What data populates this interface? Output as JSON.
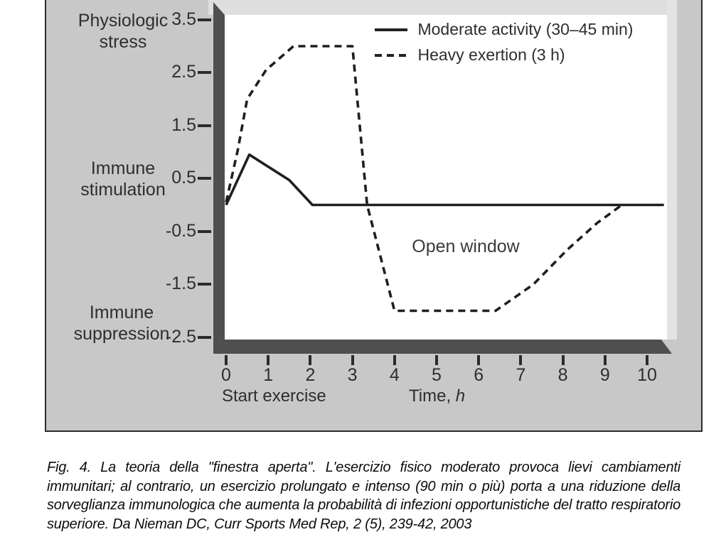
{
  "figure": {
    "y_band_labels": {
      "top": "Physiologic\nstress",
      "middle": "Immune\nstimulation",
      "bottom": "Immune\nsuppression"
    },
    "legend": [
      {
        "label": "Moderate activity (30–45 min)",
        "line_style": "solid"
      },
      {
        "label": "Heavy exertion (3 h)",
        "line_style": "dashed"
      }
    ],
    "open_window_annotation": "Open window",
    "x_axis_note": "Start exercise",
    "x_axis_title_prefix": "Time, ",
    "x_axis_title_unit": "h"
  },
  "chart_data": {
    "type": "line",
    "title": "",
    "xlabel": "Time, h",
    "ylabel": "",
    "xlim": [
      0,
      10.5
    ],
    "ylim": [
      -2.5,
      3.5
    ],
    "grid": false,
    "legend_position": "top-right",
    "x_ticks": [
      0,
      1,
      2,
      3,
      4,
      5,
      6,
      7,
      8,
      9,
      10
    ],
    "x_tick_labels": [
      "0",
      "1",
      "2",
      "3",
      "4",
      "5",
      "6",
      "7",
      "8",
      "9",
      "10"
    ],
    "y_ticks": [
      3.5,
      2.5,
      1.5,
      0.5,
      -0.5,
      -1.5,
      -2.5
    ],
    "y_tick_labels": [
      "3.5",
      "2.5",
      "1.5",
      "0.5",
      "-0.5",
      "-1.5",
      "-2.5"
    ],
    "y_region_labels": [
      "Physiologic stress (top)",
      "Immune stimulation (middle)",
      "Immune suppression (bottom)"
    ],
    "series": [
      {
        "name": "Moderate activity (30–45 min)",
        "style": "solid",
        "points": [
          [
            0,
            0
          ],
          [
            0.55,
            0.95
          ],
          [
            1.5,
            0.47
          ],
          [
            2.05,
            0
          ],
          [
            10.4,
            0
          ]
        ]
      },
      {
        "name": "Heavy exertion (3 h)",
        "style": "dashed",
        "points": [
          [
            0,
            0.05
          ],
          [
            0.28,
            1.05
          ],
          [
            0.5,
            2.0
          ],
          [
            0.95,
            2.55
          ],
          [
            1.6,
            3.0
          ],
          [
            3.0,
            3.0
          ],
          [
            3.35,
            0
          ],
          [
            4.0,
            -2.0
          ],
          [
            6.4,
            -2.0
          ],
          [
            7.3,
            -1.5
          ],
          [
            8.1,
            -0.85
          ],
          [
            8.8,
            -0.35
          ],
          [
            9.4,
            0
          ]
        ]
      }
    ],
    "annotations": [
      {
        "text": "Open window",
        "x": 5.7,
        "y": -0.9
      },
      {
        "text": "Start exercise",
        "x": 0,
        "position": "below-x-axis"
      }
    ]
  },
  "caption": "Fig. 4. La teoria della \"finestra aperta\". L'esercizio fisico moderato provoca lievi cambiamenti immunitari; al contrario, un esercizio prolungato e intenso (90 min o più) porta a una riduzione della sorveglianza immunologica che aumenta la probabilità di infezioni opportunistiche del tratto respiratorio superiore. Da Nieman DC, Curr Sports Med Rep, 2 (5), 239-42, 2003",
  "colors": {
    "figure_background": "#c8c8c8",
    "axis_bar": "#4f4f4f",
    "bevel_highlight": "#dfdfdf",
    "line_color": "#1f1f1f",
    "text_color": "#2e2e2e"
  }
}
